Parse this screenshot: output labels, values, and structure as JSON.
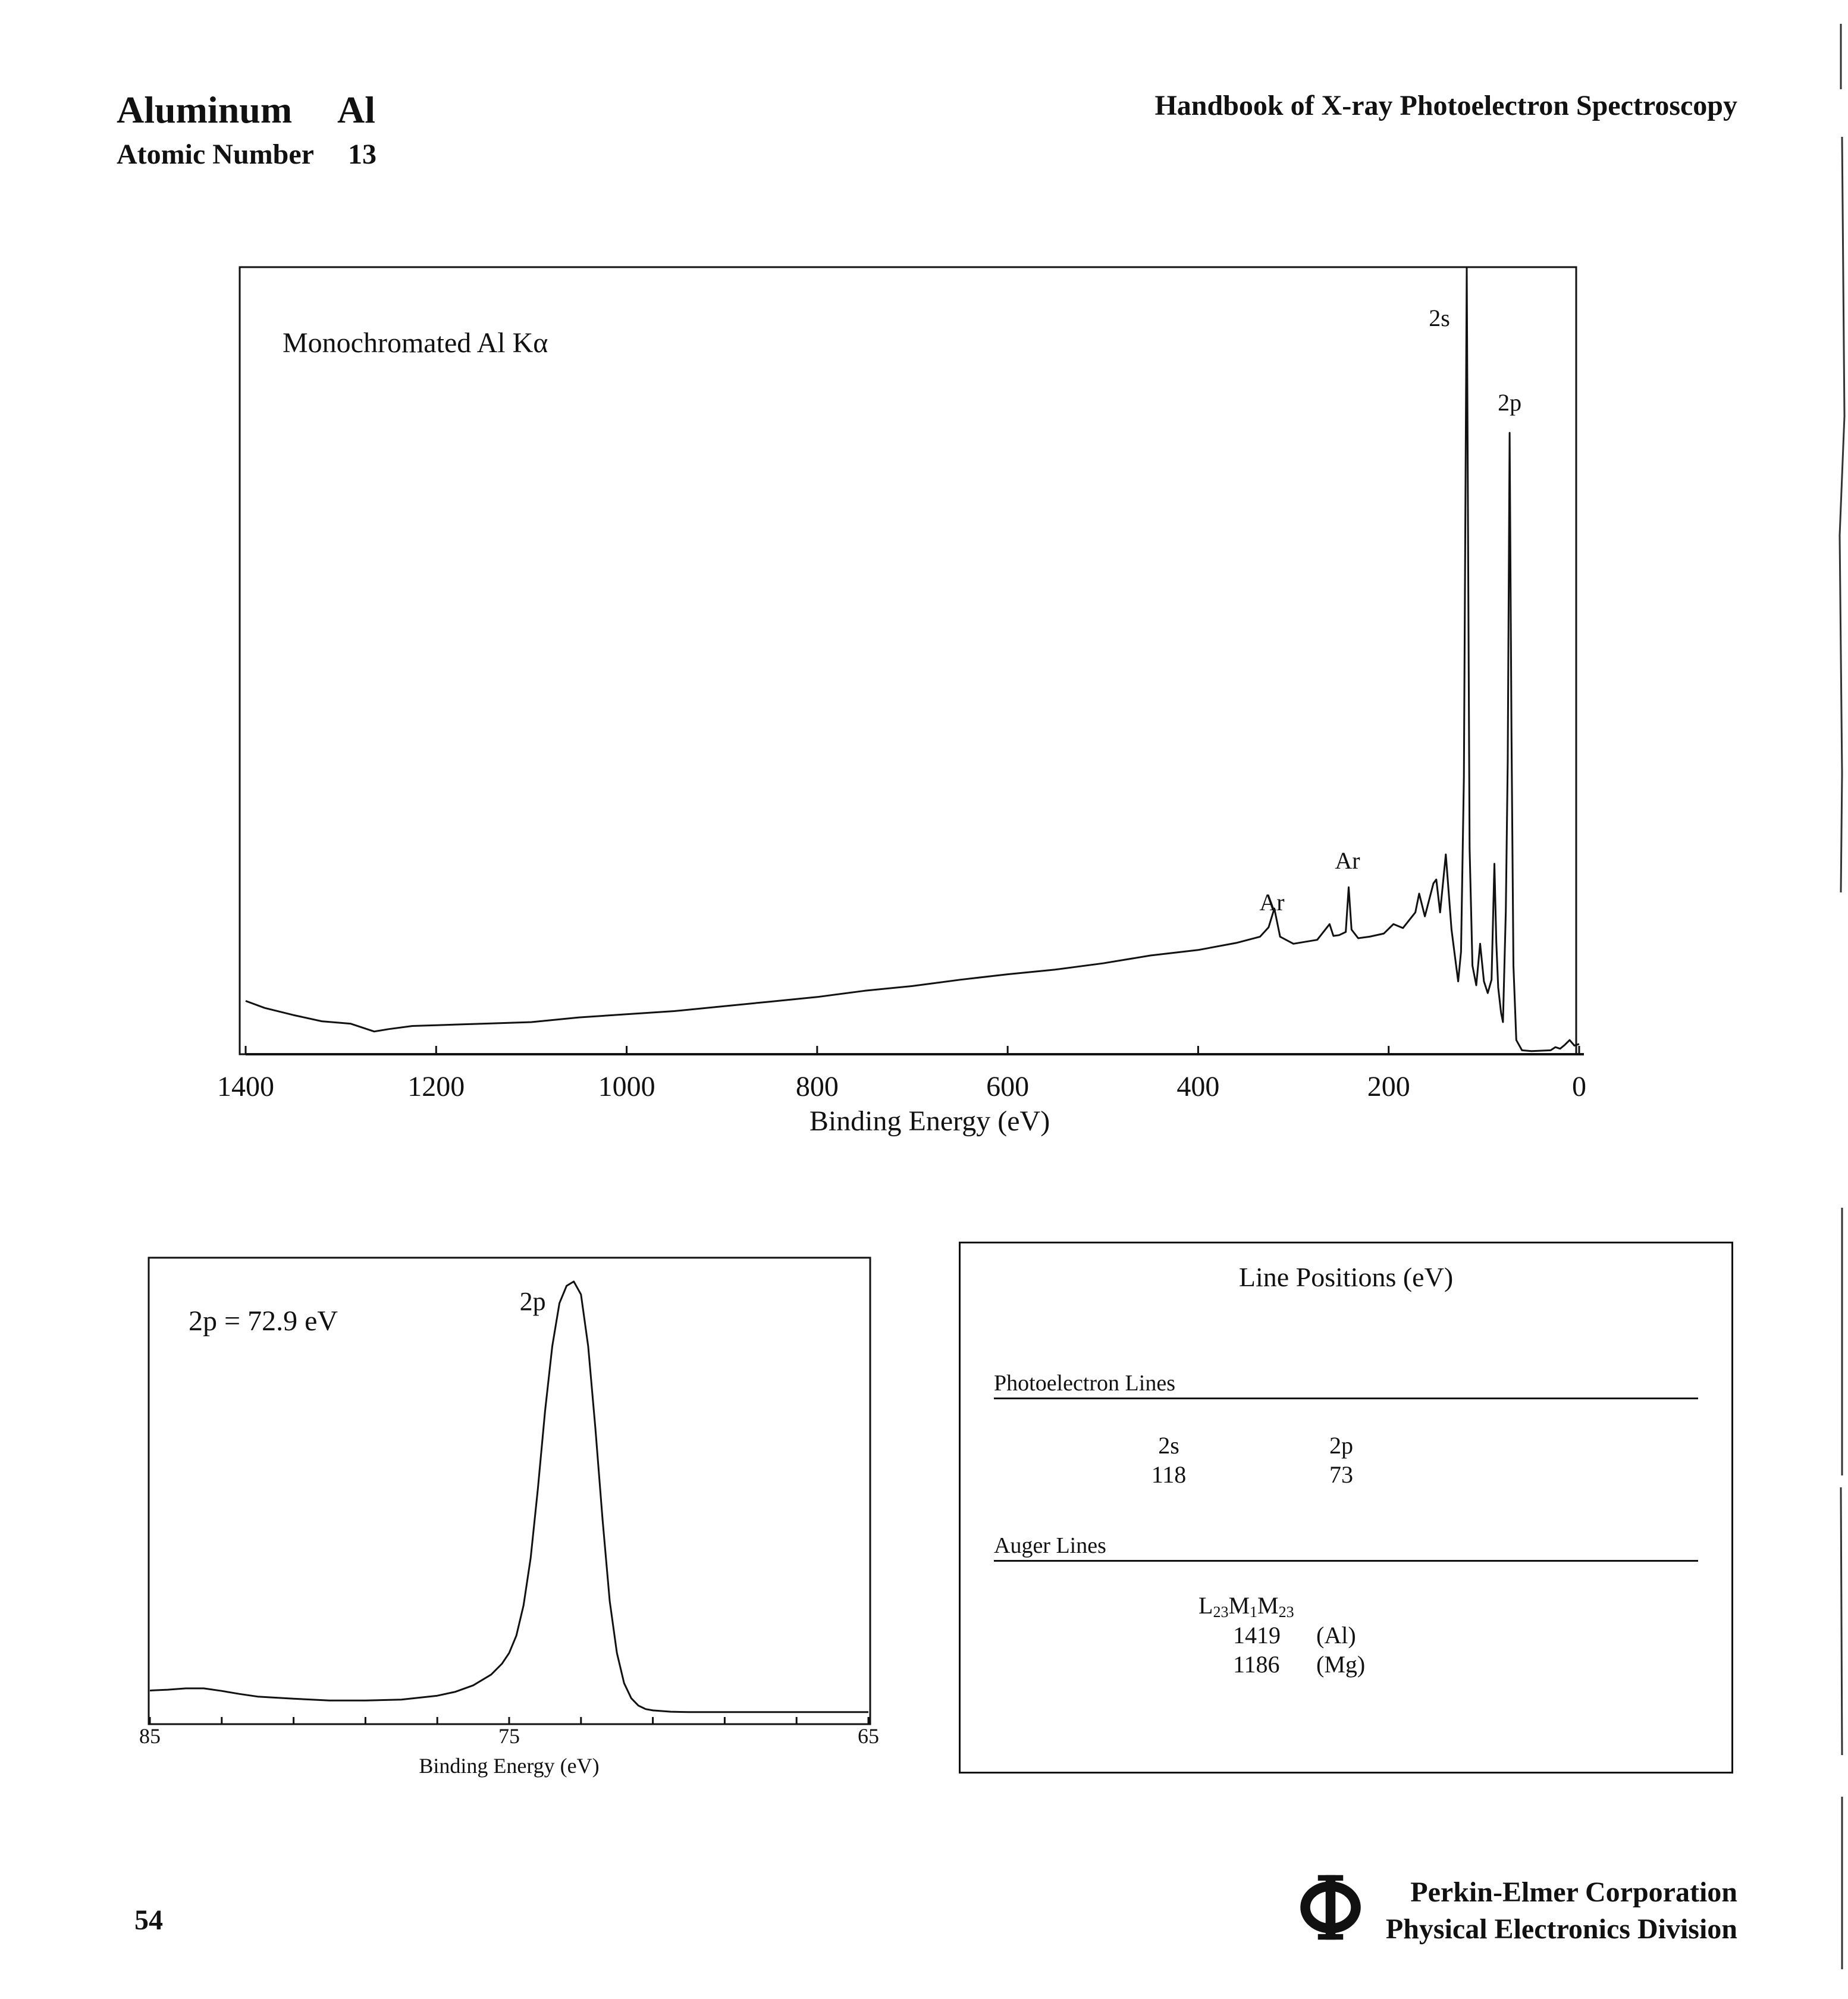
{
  "header": {
    "element_name": "Aluminum",
    "element_symbol": "Al",
    "atomic_number_label": "Atomic Number",
    "atomic_number": "13",
    "handbook_title": "Handbook of X-ray Photoelectron Spectroscopy"
  },
  "footer": {
    "page_number": "54",
    "logo_icon": "phi-logo-icon",
    "company_line1": "Perkin-Elmer Corporation",
    "company_line2": "Physical Electronics Division"
  },
  "chart_data": [
    {
      "type": "line",
      "annotation": "Monochromated Al Kα",
      "xlabel": "Binding Energy (eV)",
      "ylabel": "",
      "x_reversed": true,
      "xlim": [
        1400,
        0
      ],
      "xticks": [
        "1400",
        "1200",
        "1000",
        "800",
        "600",
        "400",
        "200",
        "0"
      ],
      "y_axis": "arbitrary intensity, no ticks",
      "ylim": [
        0,
        100
      ],
      "peak_labels": [
        {
          "label": "2s",
          "x": 118
        },
        {
          "label": "2p",
          "x": 73
        },
        {
          "label": "Ar",
          "x": 320
        },
        {
          "label": "Ar",
          "x": 242
        }
      ],
      "series": [
        {
          "x": [
            1400,
            1380,
            1350,
            1320,
            1290,
            1265,
            1250,
            1225,
            1200,
            1150,
            1100,
            1050,
            1000,
            950,
            900,
            850,
            800,
            750,
            700,
            650,
            600,
            550,
            500,
            450,
            400,
            360,
            335,
            326,
            320,
            314,
            300,
            275,
            262,
            258,
            252,
            245,
            242,
            239,
            232,
            220,
            205,
            195,
            185,
            172,
            168,
            162,
            153,
            150,
            146,
            140,
            134,
            130,
            127,
            124,
            121,
            118,
            115,
            112,
            108,
            104,
            100,
            96,
            92,
            89,
            87,
            85,
            82,
            80,
            77,
            75,
            73,
            71,
            69,
            66,
            60,
            50,
            30,
            25,
            20,
            15,
            10,
            5,
            0
          ],
          "y": [
            6.5,
            5.6,
            4.7,
            3.9,
            3.6,
            2.6,
            2.9,
            3.3,
            3.4,
            3.6,
            3.8,
            4.4,
            4.8,
            5.2,
            5.8,
            6.4,
            7.0,
            7.8,
            8.4,
            9.2,
            9.9,
            10.5,
            11.3,
            12.3,
            13.0,
            13.9,
            14.7,
            15.9,
            18.3,
            14.7,
            13.8,
            14.3,
            16.3,
            14.8,
            14.9,
            15.3,
            21.0,
            15.6,
            14.5,
            14.7,
            15.1,
            16.3,
            15.8,
            17.8,
            20.2,
            17.3,
            21.5,
            22.0,
            17.8,
            25.2,
            15.6,
            11.8,
            9.0,
            12.8,
            35.0,
            100.0,
            26.0,
            11.0,
            8.5,
            13.8,
            9.0,
            7.5,
            9.2,
            24.0,
            14.0,
            8.2,
            5.0,
            3.8,
            18.0,
            37.0,
            79.0,
            40.0,
            11.0,
            1.5,
            0.2,
            0.1,
            0.2,
            0.6,
            0.4,
            0.9,
            1.5,
            0.8,
            1.0
          ]
        }
      ]
    },
    {
      "type": "line",
      "annotation": "2p = 72.9 eV",
      "xlabel": "Binding Energy (eV)",
      "ylabel": "",
      "x_reversed": true,
      "xlim": [
        85,
        65
      ],
      "xticks": [
        "85",
        "75",
        "65"
      ],
      "ylim": [
        0,
        100
      ],
      "peak_labels": [
        {
          "label": "2p",
          "x": 73.4
        }
      ],
      "series": [
        {
          "x": [
            85,
            84.5,
            84,
            83.5,
            83,
            82.5,
            82,
            81,
            80,
            79,
            78,
            77,
            76.5,
            76,
            75.5,
            75.2,
            75,
            74.8,
            74.6,
            74.4,
            74.2,
            74,
            73.8,
            73.6,
            73.4,
            73.2,
            73,
            72.8,
            72.6,
            72.4,
            72.2,
            72,
            71.8,
            71.6,
            71.4,
            71.2,
            71,
            70.5,
            70,
            69,
            68,
            67,
            66,
            65
          ],
          "y": [
            5.3,
            5.5,
            5.8,
            5.8,
            5.2,
            4.5,
            3.9,
            3.4,
            3.0,
            3.0,
            3.2,
            4.1,
            5.0,
            6.5,
            9.0,
            11.5,
            14.0,
            18.0,
            25.0,
            36.0,
            52.0,
            70.0,
            85.0,
            95.0,
            99.0,
            100.0,
            97.0,
            85.0,
            66.0,
            45.0,
            26.0,
            14.0,
            7.0,
            3.5,
            1.8,
            1.0,
            0.7,
            0.4,
            0.3,
            0.3,
            0.3,
            0.3,
            0.3,
            0.3
          ]
        }
      ]
    }
  ],
  "line_positions": {
    "title": "Line Positions (eV)",
    "photoelectron_label": "Photoelectron Lines",
    "photoelectron": [
      {
        "name": "2s",
        "value": "118"
      },
      {
        "name": "2p",
        "value": "73"
      }
    ],
    "auger_label": "Auger Lines",
    "auger_transition": {
      "base": "L",
      "s1": "23",
      "m1": "M",
      "s2": "1",
      "m2": "M",
      "s3": "23"
    },
    "auger": [
      {
        "value": "1419",
        "source": "(Al)"
      },
      {
        "value": "1186",
        "source": "(Mg)"
      }
    ]
  }
}
